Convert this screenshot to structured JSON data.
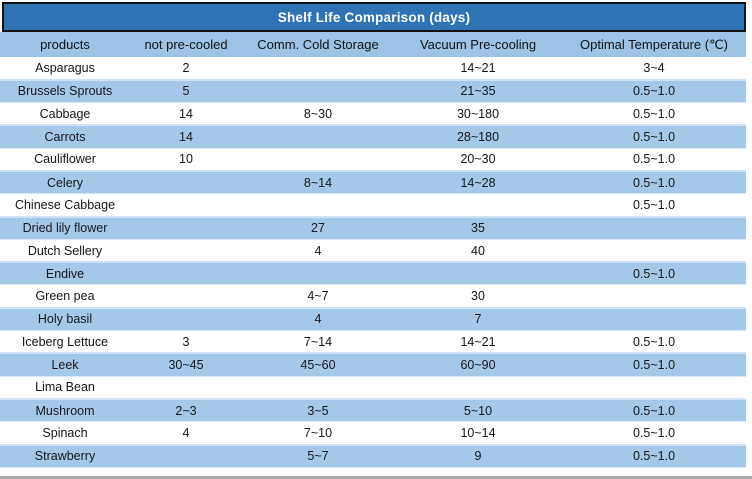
{
  "title": "Shelf Life Comparison (days)",
  "colors": {
    "title_bar_bg": "#2e74b5",
    "title_bar_border": "#121212",
    "title_text": "#ffffff",
    "header_band_bg": "#9cc3e5",
    "banded_row_bg": "#a5c8e9",
    "plain_row_bg": "#ffffff",
    "body_text": "#161616"
  },
  "chart_data": {
    "type": "table",
    "title": "Shelf Life Comparison (days)",
    "columns": [
      "products",
      "not pre-cooled",
      "Comm. Cold Storage",
      "Vacuum Pre-cooling",
      "Optimal Temperature (℃)"
    ],
    "rows": [
      [
        "Asparagus",
        "2",
        "",
        "14~21",
        "3~4"
      ],
      [
        "Brussels Sprouts",
        "5",
        "",
        "21~35",
        "0.5~1.0"
      ],
      [
        "Cabbage",
        "14",
        "8~30",
        "30~180",
        "0.5~1.0"
      ],
      [
        "Carrots",
        "14",
        "",
        "28~180",
        "0.5~1.0"
      ],
      [
        "Cauliflower",
        "10",
        "",
        "20~30",
        "0.5~1.0"
      ],
      [
        "Celery",
        "",
        "8~14",
        "14~28",
        "0.5~1.0"
      ],
      [
        "Chinese Cabbage",
        "",
        "",
        "",
        "0.5~1.0"
      ],
      [
        "Dried lily flower",
        "",
        "27",
        "35",
        ""
      ],
      [
        "Dutch Sellery",
        "",
        "4",
        "40",
        ""
      ],
      [
        "Endive",
        "",
        "",
        "",
        "0.5~1.0"
      ],
      [
        "Green pea",
        "",
        "4~7",
        "30",
        ""
      ],
      [
        "Holy basil",
        "",
        "4",
        "7",
        ""
      ],
      [
        "Iceberg Lettuce",
        "3",
        "7~14",
        "14~21",
        "0.5~1.0"
      ],
      [
        "Leek",
        "30~45",
        "45~60",
        "60~90",
        "0.5~1.0"
      ],
      [
        "Lima Bean",
        "",
        "",
        "",
        ""
      ],
      [
        "Mushroom",
        "2~3",
        "3~5",
        "5~10",
        "0.5~1.0"
      ],
      [
        "Spinach",
        "4",
        "7~10",
        "10~14",
        "0.5~1.0"
      ],
      [
        "Strawberry",
        "",
        "5~7",
        "9",
        "0.5~1.0"
      ]
    ],
    "layout": {
      "banded_rows": "every second data row (starting with row 2) has blue background",
      "gridlines": "thin light-blue horizontal separators only, no vertical lines",
      "alignment": "all cells center-aligned"
    }
  }
}
